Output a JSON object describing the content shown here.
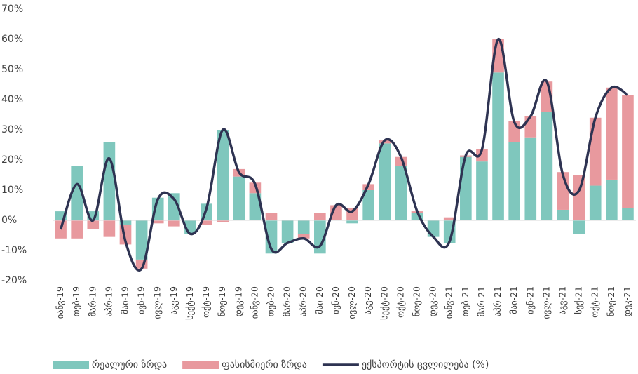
{
  "chart_data": {
    "type": "bar",
    "stacked": true,
    "categories": [
      "იანვ-19",
      "თებ-19",
      "მარ-19",
      "აპრ-19",
      "მაი-19",
      "ივნ-19",
      "ივლ-19",
      "აგვ-19",
      "სექტ-19",
      "ოქტ-19",
      "ნოე-19",
      "დეკ-19",
      "იანვ-20",
      "თებ-20",
      "მარ-20",
      "აპრ-20",
      "მაი-20",
      "ივნ-20",
      "ივლ-20",
      "აგვ-20",
      "სექტ-20",
      "ოქტ-20",
      "ნოე-20",
      "დეკ-20",
      "იანვ-21",
      "თებ-21",
      "მარ-21",
      "აპრ-21",
      "მაი-21",
      "ივნ-21",
      "ივლ-21",
      "აგვ-21",
      "სექ-21",
      "ოქტ-21",
      "ნოე-21",
      "დეკ-21"
    ],
    "series": [
      {
        "name": "რეალური ზრდა",
        "type": "bar",
        "color": "#7fc7bd",
        "values": [
          3,
          18,
          3,
          26,
          -1.5,
          -13,
          7.5,
          9,
          -4.5,
          5.5,
          30,
          14.5,
          9,
          -11,
          -7.5,
          -4.5,
          -11,
          0,
          -1,
          10,
          25.5,
          18,
          2.5,
          -5.5,
          -7.5,
          21,
          19.5,
          49,
          26,
          27.5,
          36,
          3.5,
          -4.5,
          11.5,
          13.5,
          4
        ]
      },
      {
        "name": "ფასისმიერი ზრდა",
        "type": "bar",
        "color": "#e8999e",
        "values": [
          -6,
          -6,
          -3,
          -5.5,
          -6.5,
          -3,
          -1,
          -2,
          0,
          -1.5,
          -0.5,
          2.5,
          3.5,
          2.5,
          0,
          -1.5,
          2.5,
          5,
          4,
          2,
          1,
          3,
          0.5,
          0,
          1,
          0.5,
          4,
          11,
          7,
          7,
          10,
          12.5,
          15,
          22.5,
          30.5,
          37.5
        ]
      },
      {
        "name": "ექსპორტის ცვლილება (%)",
        "type": "line",
        "color": "#2e3352",
        "values": [
          -3,
          12,
          0,
          20.5,
          -7,
          -16,
          7,
          7,
          -4.5,
          4,
          30,
          16,
          12,
          -9.5,
          -7.5,
          -6,
          -8.5,
          5,
          3,
          12,
          26.5,
          21,
          3,
          -5.5,
          -7,
          21.5,
          23.5,
          60,
          32.5,
          34.5,
          46,
          15,
          10,
          34,
          44,
          41.5
        ]
      }
    ],
    "ylim": [
      -20,
      70
    ],
    "yticks": [
      {
        "value": -20,
        "label": "-20%"
      },
      {
        "value": -10,
        "label": "-10%"
      },
      {
        "value": 0,
        "label": "0%"
      },
      {
        "value": 10,
        "label": "10%"
      },
      {
        "value": 20,
        "label": "20%"
      },
      {
        "value": 30,
        "label": "30%"
      },
      {
        "value": 40,
        "label": "40%"
      },
      {
        "value": 50,
        "label": "50%"
      },
      {
        "value": 60,
        "label": "60%"
      },
      {
        "value": 70,
        "label": "70%"
      }
    ],
    "legend": "bottom"
  }
}
